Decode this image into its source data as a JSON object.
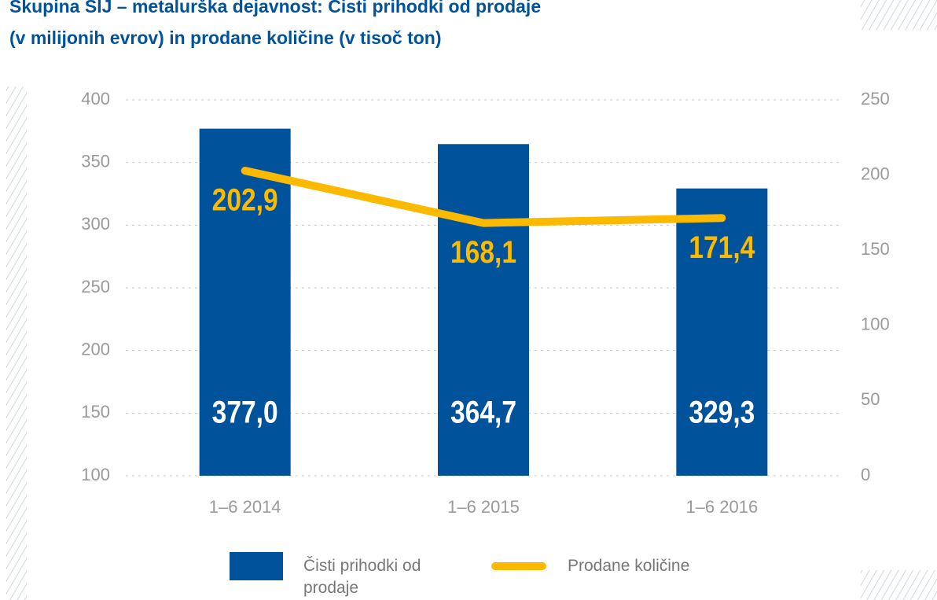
{
  "chart_data": {
    "type": "bar_line",
    "title": [
      "Skupina SIJ – metalurška dejavnost: Čisti prihodki od prodaje",
      "(v milijonih evrov) in prodane količine (v tisoč ton)"
    ],
    "categories": [
      "1–6 2014",
      "1–6 2015",
      "1–6 2016"
    ],
    "series": [
      {
        "name": "Čisti prihodki od prodaje",
        "type": "bar",
        "color": "#00539b",
        "values": [
          377.0,
          364.7,
          329.3
        ],
        "value_labels": [
          "377,0",
          "364,7",
          "329,3"
        ]
      },
      {
        "name": "Prodane količine",
        "type": "line",
        "axis": "y2",
        "color": "#fbb900",
        "values": [
          202.9,
          168.1,
          171.4
        ],
        "value_labels": [
          "202,9",
          "168,1",
          "171,4"
        ]
      }
    ],
    "ylim": [
      100,
      400
    ],
    "yticks": [
      100,
      150,
      200,
      250,
      300,
      350,
      400
    ],
    "y2lim": [
      0,
      250
    ],
    "y2ticks": [
      0,
      50,
      100,
      150,
      200,
      250
    ],
    "grid": true
  }
}
